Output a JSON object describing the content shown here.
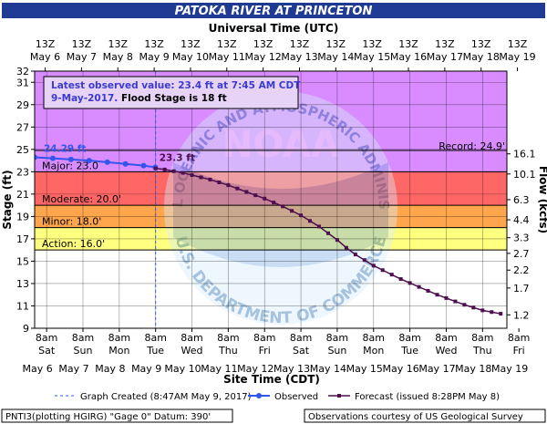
{
  "chart_data": {
    "type": "line",
    "title": "PATOKA RIVER AT PRINCETON",
    "top_axis_label": "Universal Time (UTC)",
    "xlabel": "Site Time (CDT)",
    "ylabel": "Stage (ft)",
    "y2label": "Flow (kcfs)",
    "ylim": [
      9,
      32
    ],
    "y_ticks": [
      9,
      11,
      13,
      15,
      17,
      19,
      21,
      23,
      25,
      27,
      29,
      31,
      32
    ],
    "y2_ticks": [
      {
        "stage": 10.2,
        "label": "1.2"
      },
      {
        "stage": 12.6,
        "label": "1.7"
      },
      {
        "stage": 14.2,
        "label": "2.2"
      },
      {
        "stage": 15.7,
        "label": "2.7"
      },
      {
        "stage": 17.1,
        "label": "3.3"
      },
      {
        "stage": 18.7,
        "label": "4.4"
      },
      {
        "stage": 20.5,
        "label": "6.3"
      },
      {
        "stage": 22.8,
        "label": "10.1"
      },
      {
        "stage": 24.6,
        "label": "16.1"
      }
    ],
    "x_day_range": [
      6,
      19
    ],
    "top_ticks": [
      {
        "day": 6.29,
        "top": "13Z",
        "bottom": "May  6"
      },
      {
        "day": 7.29,
        "top": "13Z",
        "bottom": "May  7"
      },
      {
        "day": 8.29,
        "top": "13Z",
        "bottom": "May  8"
      },
      {
        "day": 9.29,
        "top": "13Z",
        "bottom": "May  9"
      },
      {
        "day": 10.29,
        "top": "13Z",
        "bottom": "May 10"
      },
      {
        "day": 11.29,
        "top": "13Z",
        "bottom": "May 11"
      },
      {
        "day": 12.29,
        "top": "13Z",
        "bottom": "May 12"
      },
      {
        "day": 13.29,
        "top": "13Z",
        "bottom": "May 13"
      },
      {
        "day": 14.29,
        "top": "13Z",
        "bottom": "May 14"
      },
      {
        "day": 15.29,
        "top": "13Z",
        "bottom": "May 15"
      },
      {
        "day": 16.29,
        "top": "13Z",
        "bottom": "May 16"
      },
      {
        "day": 17.29,
        "top": "13Z",
        "bottom": "May 17"
      },
      {
        "day": 18.29,
        "top": "13Z",
        "bottom": "May 18"
      },
      {
        "day": 19.29,
        "top": "13Z",
        "bottom": "May 19"
      }
    ],
    "bottom_ticks": [
      {
        "day": 6.33,
        "time": "8am",
        "dow": "Sat",
        "date": "May 6"
      },
      {
        "day": 7.33,
        "time": "8am",
        "dow": "Sun",
        "date": "May 7"
      },
      {
        "day": 8.33,
        "time": "8am",
        "dow": "Mon",
        "date": "May 8"
      },
      {
        "day": 9.33,
        "time": "8am",
        "dow": "Tue",
        "date": "May 9"
      },
      {
        "day": 10.33,
        "time": "8am",
        "dow": "Wed",
        "date": "May 10"
      },
      {
        "day": 11.33,
        "time": "8am",
        "dow": "Thu",
        "date": "May 11"
      },
      {
        "day": 12.33,
        "time": "8am",
        "dow": "Fri",
        "date": "May 12"
      },
      {
        "day": 13.33,
        "time": "8am",
        "dow": "Sat",
        "date": "May 13"
      },
      {
        "day": 14.33,
        "time": "8am",
        "dow": "Sun",
        "date": "May 14"
      },
      {
        "day": 15.33,
        "time": "8am",
        "dow": "Mon",
        "date": "May 15"
      },
      {
        "day": 16.33,
        "time": "8am",
        "dow": "Tue",
        "date": "May 16"
      },
      {
        "day": 17.33,
        "time": "8am",
        "dow": "Wed",
        "date": "May 17"
      },
      {
        "day": 18.33,
        "time": "8am",
        "dow": "Thu",
        "date": "May 18"
      },
      {
        "day": 19.33,
        "time": "8am",
        "dow": "Fri",
        "date": "May 19"
      }
    ],
    "flood_categories": [
      {
        "name": "Action",
        "label": "Action: 16.0'",
        "from": 16.0,
        "to": 18.0,
        "color": "#ffff80"
      },
      {
        "name": "Minor",
        "label": "Minor: 18.0'",
        "from": 18.0,
        "to": 20.0,
        "color": "#ffa64d"
      },
      {
        "name": "Moderate",
        "label": "Moderate: 20.0'",
        "from": 20.0,
        "to": 23.0,
        "color": "#ff6666"
      },
      {
        "name": "Major",
        "label": "Major: 23.0",
        "from": 23.0,
        "to": 32.0,
        "color": "#d98cff"
      }
    ],
    "record": {
      "label": "Record: 24.9'",
      "value": 24.9
    },
    "graph_created_day": 9.33,
    "observed": {
      "name": "Observed",
      "color": "#3355ee",
      "start_label": "24.29 ft",
      "x": [
        6.0,
        6.5,
        7.0,
        7.5,
        8.0,
        8.5,
        9.0,
        9.32
      ],
      "y": [
        24.29,
        24.2,
        24.1,
        24.0,
        23.85,
        23.7,
        23.55,
        23.4
      ]
    },
    "forecast": {
      "name": "Forecast (issued 8:28PM May 8)",
      "color": "#4d0f4d",
      "start_label": "23.3 ft",
      "x": [
        9.33,
        9.58,
        9.83,
        10.08,
        10.33,
        10.58,
        10.83,
        11.08,
        11.33,
        11.58,
        11.83,
        12.08,
        12.33,
        12.58,
        12.83,
        13.08,
        13.33,
        13.58,
        13.83,
        14.08,
        14.33,
        14.58,
        14.83,
        15.08,
        15.33,
        15.58,
        15.83,
        16.08,
        16.33,
        16.58,
        16.83,
        17.08,
        17.33,
        17.58,
        17.83,
        18.08,
        18.33,
        18.58,
        18.83
      ],
      "y": [
        23.3,
        23.2,
        23.05,
        22.9,
        22.7,
        22.5,
        22.3,
        22.05,
        21.8,
        21.5,
        21.2,
        20.9,
        20.6,
        20.25,
        19.9,
        19.5,
        19.1,
        18.6,
        18.1,
        17.5,
        16.9,
        16.2,
        15.6,
        15.1,
        14.6,
        14.2,
        13.8,
        13.4,
        13.05,
        12.7,
        12.35,
        12.0,
        11.7,
        11.4,
        11.1,
        10.85,
        10.6,
        10.45,
        10.3
      ]
    }
  },
  "annotation": {
    "line1": "Latest observed value: 23.4 ft at 7:45 AM CDT",
    "line2_date": "9-May-2017.",
    "line2_flood": " Flood Stage is 18 ft"
  },
  "watermark": {
    "top_text": "NATIONAL OCEANIC AND ATMOSPHERIC ADMINISTRATION",
    "center_text": "NOAA",
    "bottom_text": "U.S. DEPARTMENT OF COMMERCE"
  },
  "legend": {
    "graph_created": "Graph Created (8:47AM May 9, 2017)",
    "observed": "Observed",
    "forecast": "Forecast (issued 8:28PM May 8)"
  },
  "footer": {
    "left": "PNTI3(plotting HGIRG) \"Gage 0\" Datum: 390'",
    "right": "Observations courtesy of US Geological Survey"
  },
  "colors": {
    "title_bar": "#1f3a93",
    "observed": "#3355ee",
    "forecast": "#4d0f4d"
  }
}
